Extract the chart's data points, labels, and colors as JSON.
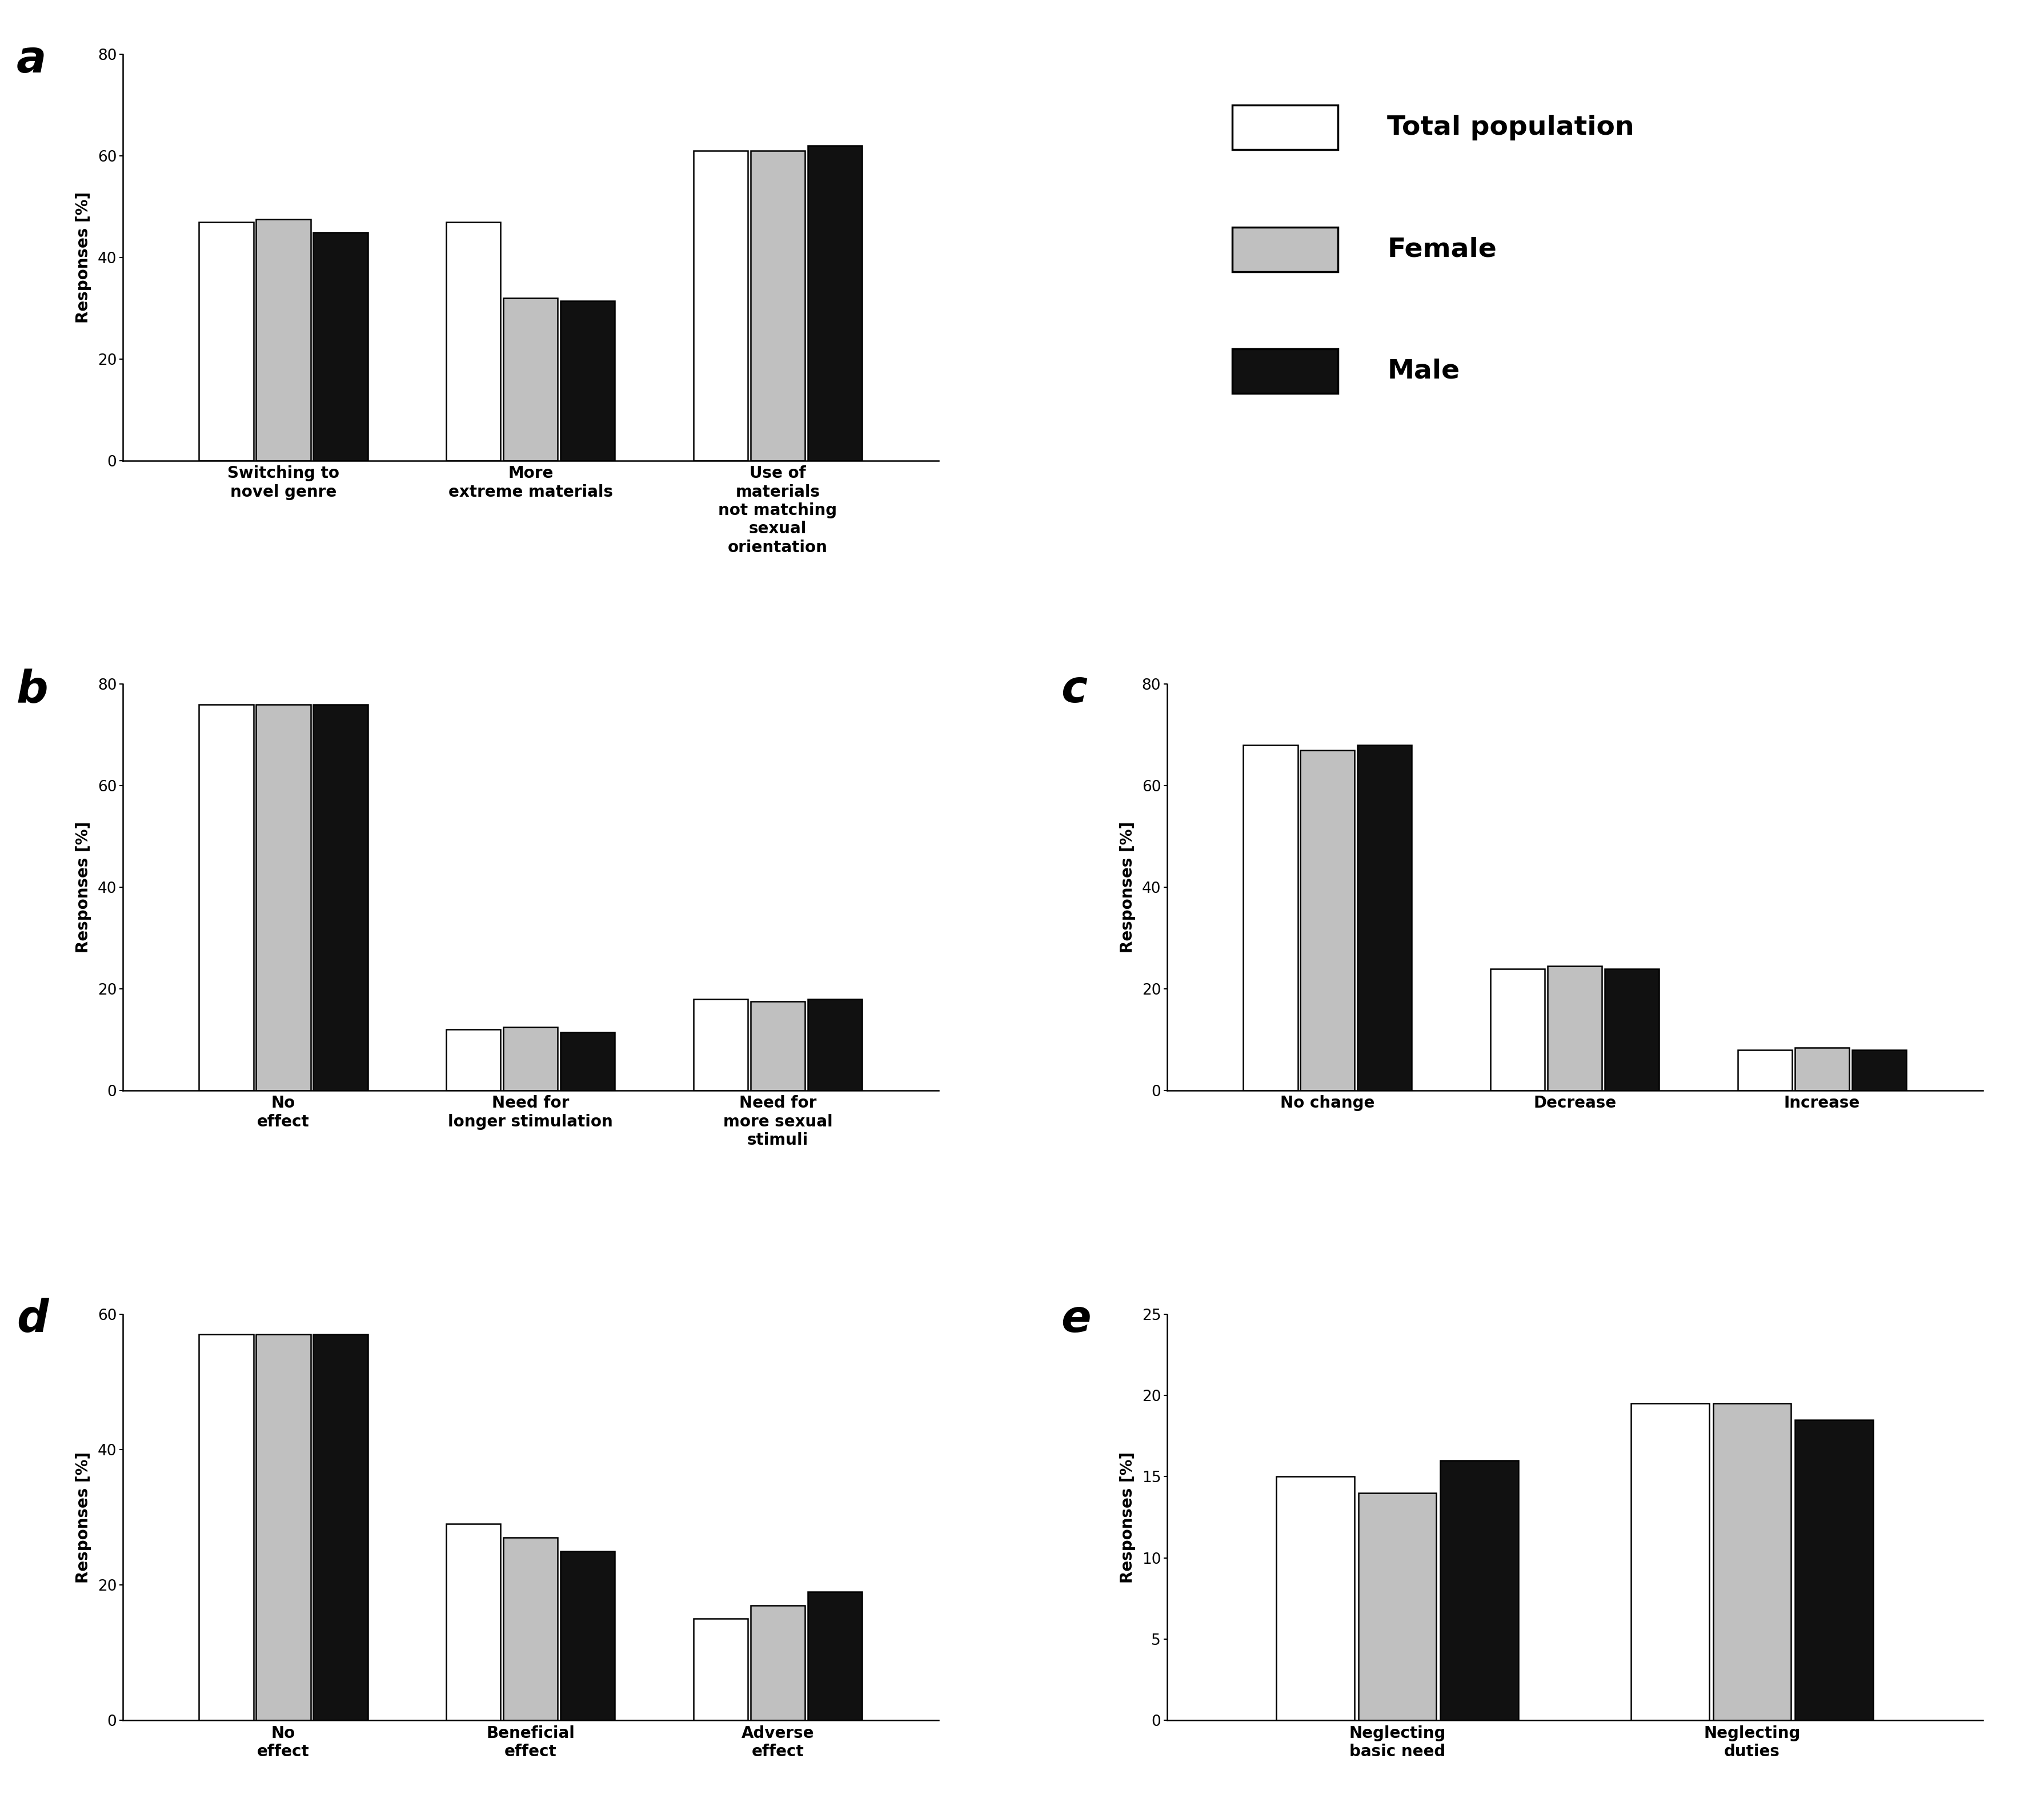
{
  "panel_a": {
    "label": "a",
    "categories": [
      "Switching to\nnovel genre",
      "More\nextreme materials",
      "Use of\nmaterials\nnot matching\nsexual\norientation"
    ],
    "total": [
      47,
      47,
      61
    ],
    "female": [
      47.5,
      32,
      61
    ],
    "male": [
      45,
      31.5,
      62
    ],
    "ylim": [
      0,
      80
    ],
    "yticks": [
      0,
      20,
      40,
      60,
      80
    ]
  },
  "panel_b": {
    "label": "b",
    "categories": [
      "No\neffect",
      "Need for\nlonger stimulation",
      "Need for\nmore sexual\nstimuli"
    ],
    "total": [
      76,
      12,
      18
    ],
    "female": [
      76,
      12.5,
      17.5
    ],
    "male": [
      76,
      11.5,
      18
    ],
    "ylim": [
      0,
      80
    ],
    "yticks": [
      0,
      20,
      40,
      60,
      80
    ]
  },
  "panel_c": {
    "label": "c",
    "categories": [
      "No change",
      "Decrease",
      "Increase"
    ],
    "total": [
      68,
      24,
      8
    ],
    "female": [
      67,
      24.5,
      8.5
    ],
    "male": [
      68,
      24,
      8
    ],
    "ylim": [
      0,
      80
    ],
    "yticks": [
      0,
      20,
      40,
      60,
      80
    ]
  },
  "panel_d": {
    "label": "d",
    "categories": [
      "No\neffect",
      "Beneficial\neffect",
      "Adverse\neffect"
    ],
    "total": [
      57,
      29,
      15
    ],
    "female": [
      57,
      27,
      17
    ],
    "male": [
      57,
      25,
      19
    ],
    "ylim": [
      0,
      60
    ],
    "yticks": [
      0,
      20,
      40,
      60
    ]
  },
  "panel_e": {
    "label": "e",
    "categories": [
      "Neglecting\nbasic need",
      "Neglecting\nduties"
    ],
    "total": [
      15,
      19.5
    ],
    "female": [
      14,
      19.5
    ],
    "male": [
      16,
      18.5
    ],
    "ylim": [
      0,
      25
    ],
    "yticks": [
      0,
      5,
      10,
      15,
      20,
      25
    ]
  },
  "colors": {
    "total": "#ffffff",
    "female": "#c0c0c0",
    "male": "#111111"
  },
  "edgecolor": "#000000",
  "bar_width": 0.22,
  "ylabel": "Responses [%]",
  "legend": {
    "labels": [
      "Total population",
      "Female",
      "Male"
    ],
    "colors": [
      "#ffffff",
      "#c0c0c0",
      "#111111"
    ]
  }
}
